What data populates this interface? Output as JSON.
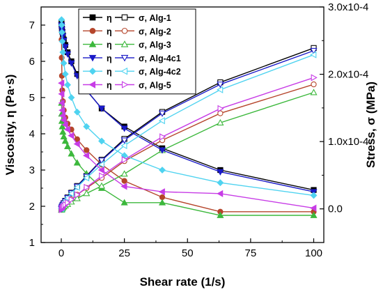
{
  "chart_data": {
    "type": "scatter",
    "xlabel": "Shear rate (1/s)",
    "ylabel_left": "Viscosity, η (Pa·s)",
    "ylabel_right": "Stress, σ (MPa)",
    "xlim": [
      -8,
      104
    ],
    "ylim_left": [
      1,
      7.5
    ],
    "ylim_right": [
      -5e-05,
      0.0003
    ],
    "x_ticks": [
      0,
      25,
      50,
      75,
      100
    ],
    "x_tick_labels": [
      "0",
      "25",
      "50",
      "75",
      "100"
    ],
    "y_left_ticks": [
      1,
      2,
      3,
      4,
      5,
      6,
      7
    ],
    "y_left_tick_labels": [
      "1",
      "2",
      "3",
      "4",
      "5",
      "6",
      "7"
    ],
    "y_right_ticks": [
      0,
      0.0001,
      0.0002,
      0.0003
    ],
    "y_right_tick_labels": [
      "0.0",
      "1.0x10-4",
      "2.0x10-4",
      "3.0x10-4"
    ],
    "grid": false,
    "legend_position": "top-center",
    "legend": [
      {
        "left": "η",
        "right": "σ, Alg-1"
      },
      {
        "left": "η",
        "right": "σ, Alg-2"
      },
      {
        "left": "η",
        "right": "σ, Alg-3"
      },
      {
        "left": "η",
        "right": "σ, Alg-4c1"
      },
      {
        "left": "η",
        "right": "σ, Alg-4c2"
      },
      {
        "left": "η",
        "right": "σ, Alg-5"
      }
    ],
    "x": [
      0.1,
      0.16,
      0.25,
      0.4,
      0.63,
      1.0,
      1.6,
      2.5,
      4.0,
      6.3,
      10,
      16,
      25,
      40,
      63,
      100
    ],
    "series": [
      {
        "color": "#000000",
        "viscosity_marker": "square-filled",
        "stress_marker": "square-open",
        "viscosity": [
          7.05,
          6.98,
          6.9,
          6.82,
          6.72,
          6.6,
          6.45,
          6.25,
          6.0,
          5.65,
          5.2,
          4.7,
          4.2,
          3.6,
          3.0,
          2.45
        ],
        "stress": [
          0.0,
          1e-06,
          2.5e-06,
          4e-06,
          6e-06,
          8.5e-06,
          1.2e-05,
          1.7e-05,
          2.4e-05,
          3.4e-05,
          4.9e-05,
          7.3e-05,
          0.000104,
          0.000144,
          0.000188,
          0.000239
        ]
      },
      {
        "color": "#b5452b",
        "viscosity_marker": "circle-filled",
        "stress_marker": "circle-open",
        "viscosity": [
          6.6,
          6.1,
          5.6,
          5.2,
          4.9,
          4.65,
          4.45,
          4.28,
          4.12,
          3.85,
          3.55,
          3.15,
          2.7,
          2.25,
          1.85,
          1.85
        ],
        "stress": [
          -1e-06,
          0.0,
          8e-07,
          1.8e-06,
          3e-06,
          4.5e-06,
          6.5e-06,
          9e-06,
          1.4e-05,
          2.1e-05,
          3.1e-05,
          4.6e-05,
          7.1e-05,
          0.000102,
          0.000142,
          0.000185
        ]
      },
      {
        "color": "#3cb83c",
        "viscosity_marker": "triangle-up-filled",
        "stress_marker": "triangle-up-open",
        "viscosity": [
          4.85,
          4.55,
          4.35,
          4.2,
          4.05,
          3.92,
          3.8,
          3.65,
          3.45,
          3.2,
          2.9,
          2.5,
          2.1,
          2.1,
          1.75,
          1.75
        ],
        "stress": [
          -1.5e-06,
          -1e-06,
          0.0,
          1e-06,
          2e-06,
          3.2e-06,
          4.8e-06,
          7e-06,
          1.05e-05,
          1.55e-05,
          2.3e-05,
          3.4e-05,
          5.2e-05,
          8.7e-05,
          0.000128,
          0.000173
        ]
      },
      {
        "color": "#1a1ac8",
        "viscosity_marker": "triangle-down-filled",
        "stress_marker": "triangle-down-open",
        "viscosity": [
          7.0,
          6.95,
          6.88,
          6.8,
          6.7,
          6.58,
          6.4,
          6.2,
          5.95,
          5.6,
          5.2,
          4.7,
          4.15,
          3.55,
          2.95,
          2.4
        ],
        "stress": [
          0.0,
          1e-06,
          2.4e-06,
          3.8e-06,
          5.8e-06,
          8.2e-06,
          1.15e-05,
          1.65e-05,
          2.35e-05,
          3.32e-05,
          4.8e-05,
          7.2e-05,
          0.000102,
          0.000142,
          0.000185,
          0.000235
        ]
      },
      {
        "color": "#4fd3f0",
        "viscosity_marker": "diamond-filled",
        "stress_marker": "triangle-left-open",
        "viscosity": [
          7.15,
          7.0,
          6.8,
          6.55,
          6.25,
          5.95,
          5.65,
          5.35,
          5.0,
          4.6,
          4.2,
          3.8,
          3.4,
          3.0,
          2.65,
          2.3
        ],
        "stress": [
          0.0,
          1e-06,
          2.2e-06,
          3.6e-06,
          5.5e-06,
          8e-06,
          1.13e-05,
          1.6e-05,
          2.28e-05,
          3.2e-05,
          4.6e-05,
          6.6e-05,
          9.4e-05,
          0.000131,
          0.000177,
          0.000229
        ]
      },
      {
        "color": "#c73ce6",
        "viscosity_marker": "triangle-left-filled",
        "stress_marker": "triangle-right-open",
        "viscosity": [
          5.4,
          5.1,
          4.85,
          4.65,
          4.5,
          4.38,
          4.25,
          4.12,
          3.95,
          3.72,
          3.4,
          3.0,
          2.55,
          2.4,
          2.35,
          1.95
        ],
        "stress": [
          -1.2e-06,
          -5e-07,
          5e-07,
          1.5e-06,
          2.8e-06,
          4.3e-06,
          6.3e-06,
          9.2e-06,
          1.38e-05,
          2.1e-05,
          3.2e-05,
          4.9e-05,
          7.3e-05,
          0.000107,
          0.000149,
          0.000195
        ]
      }
    ]
  }
}
